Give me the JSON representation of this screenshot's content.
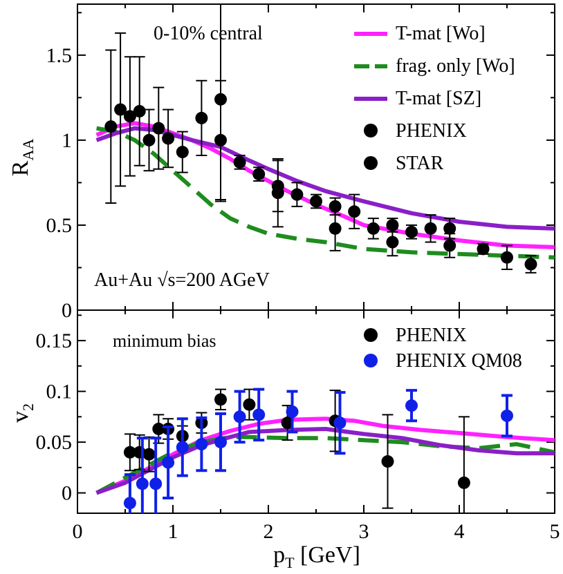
{
  "chart_data": [
    {
      "type": "line",
      "panel": "top",
      "title": "",
      "xlabel": "",
      "ylabel": "R",
      "ylabel_sub": "AA",
      "xlim": [
        0,
        5
      ],
      "ylim": [
        0,
        1.8
      ],
      "yticks": [
        0,
        0.5,
        1,
        1.5
      ],
      "ytick_labels": [
        "0",
        "0.5",
        "1",
        "1.5"
      ],
      "grid": false,
      "legend_position": "top-right",
      "annotations": {
        "centrality": "0-10% central",
        "system": "Au+Au √s=200 AGeV"
      },
      "series": [
        {
          "name": "T-mat [Wo]",
          "kind": "line",
          "style": "solid",
          "color": "#ff22ff",
          "x": [
            0.2,
            0.4,
            0.6,
            0.8,
            1.0,
            1.2,
            1.4,
            1.6,
            1.8,
            2.0,
            2.2,
            2.5,
            2.8,
            3.0,
            3.5,
            4.0,
            4.5,
            5.0
          ],
          "y": [
            1.03,
            1.08,
            1.1,
            1.08,
            1.04,
            1.0,
            0.95,
            0.89,
            0.82,
            0.76,
            0.7,
            0.62,
            0.55,
            0.5,
            0.45,
            0.41,
            0.38,
            0.37
          ]
        },
        {
          "name": "frag. only [Wo]",
          "kind": "line",
          "style": "dashed",
          "color": "#1e8c1e",
          "x": [
            0.2,
            0.4,
            0.6,
            0.8,
            1.0,
            1.2,
            1.4,
            1.6,
            1.8,
            2.0,
            2.3,
            2.6,
            3.0,
            3.5,
            4.0,
            4.5,
            5.0
          ],
          "y": [
            1.07,
            1.05,
            1.0,
            0.92,
            0.82,
            0.72,
            0.62,
            0.54,
            0.49,
            0.45,
            0.42,
            0.4,
            0.36,
            0.34,
            0.33,
            0.32,
            0.31
          ]
        },
        {
          "name": "T-mat [SZ]",
          "kind": "line",
          "style": "solid",
          "color": "#8a1fc7",
          "x": [
            0.2,
            0.4,
            0.6,
            0.8,
            1.0,
            1.2,
            1.5,
            1.8,
            2.0,
            2.3,
            2.6,
            3.0,
            3.5,
            4.0,
            4.5,
            5.0
          ],
          "y": [
            1.0,
            1.04,
            1.07,
            1.06,
            1.03,
            1.0,
            0.96,
            0.88,
            0.83,
            0.76,
            0.7,
            0.64,
            0.57,
            0.52,
            0.49,
            0.48
          ]
        },
        {
          "name": "PHENIX",
          "kind": "points",
          "color": "#000000",
          "x": [
            0.35,
            0.45,
            0.55,
            0.65,
            0.75,
            0.85,
            0.95,
            1.1,
            1.3,
            1.5,
            1.7,
            1.9,
            2.1,
            2.3,
            2.5,
            2.7,
            2.9,
            3.1,
            3.3,
            3.5,
            3.7,
            3.9,
            4.25,
            4.5,
            4.75
          ],
          "y": [
            1.08,
            1.18,
            1.14,
            1.17,
            1.0,
            1.07,
            1.01,
            0.93,
            1.13,
            1.24,
            0.87,
            0.8,
            0.73,
            0.68,
            0.64,
            0.61,
            0.58,
            0.48,
            0.5,
            0.46,
            0.48,
            0.48,
            0.36,
            0.31,
            0.27
          ],
          "err": [
            0.45,
            0.45,
            0.35,
            0.32,
            0.18,
            0.24,
            0.17,
            0.12,
            0.22,
            0.6,
            0.04,
            0.04,
            0.15,
            0.07,
            0.04,
            0.05,
            0.1,
            0.06,
            0.04,
            0.04,
            0.08,
            0.06,
            0.03,
            0.07,
            0.05
          ]
        },
        {
          "name": "STAR",
          "kind": "points",
          "color": "#000000",
          "x": [
            1.5,
            2.1,
            2.7,
            3.3,
            3.9
          ],
          "y": [
            1.0,
            0.69,
            0.48,
            0.4,
            0.38
          ],
          "err": [
            0.35,
            0.2,
            0.13,
            0.08,
            0.07
          ]
        }
      ]
    },
    {
      "type": "line",
      "panel": "bottom",
      "title": "",
      "xlabel": "p",
      "xlabel_sub": "T",
      "xlabel_rest": " [GeV]",
      "ylabel": "v",
      "ylabel_sub": "2",
      "xlim": [
        0,
        5
      ],
      "ylim": [
        -0.02,
        0.18
      ],
      "xticks": [
        0,
        1,
        2,
        3,
        4,
        5
      ],
      "xtick_labels": [
        "0",
        "1",
        "2",
        "3",
        "4",
        "5"
      ],
      "yticks": [
        0,
        0.05,
        0.1,
        0.15
      ],
      "ytick_labels": [
        "0",
        "0.05",
        "0.1",
        "0.15"
      ],
      "grid": false,
      "legend_position": "top-right",
      "annotations": {
        "sample": "minimum bias"
      },
      "series": [
        {
          "name": "",
          "kind": "line",
          "style": "solid",
          "color": "#ff22ff",
          "x": [
            0.2,
            0.5,
            0.8,
            1.0,
            1.3,
            1.6,
            1.9,
            2.2,
            2.6,
            2.9,
            3.2,
            3.6,
            4.0,
            4.5,
            5.0
          ],
          "y": [
            0.0,
            0.012,
            0.027,
            0.038,
            0.052,
            0.061,
            0.068,
            0.072,
            0.073,
            0.071,
            0.066,
            0.062,
            0.059,
            0.055,
            0.052
          ]
        },
        {
          "name": "",
          "kind": "line",
          "style": "dashed",
          "color": "#1e8c1e",
          "x": [
            0.2,
            0.5,
            0.8,
            1.0,
            1.3,
            1.6,
            1.8,
            2.2,
            2.6,
            3.0,
            3.4,
            3.8,
            4.2,
            4.6,
            5.0
          ],
          "y": [
            0.0,
            0.015,
            0.03,
            0.04,
            0.05,
            0.055,
            0.055,
            0.054,
            0.054,
            0.052,
            0.05,
            0.046,
            0.044,
            0.048,
            0.04
          ]
        },
        {
          "name": "",
          "kind": "line",
          "style": "solid",
          "color": "#8a1fc7",
          "x": [
            0.2,
            0.5,
            0.8,
            1.0,
            1.3,
            1.6,
            1.8,
            2.2,
            2.6,
            3.0,
            3.4,
            3.8,
            4.2,
            4.6,
            5.0
          ],
          "y": [
            0.0,
            0.01,
            0.025,
            0.035,
            0.047,
            0.055,
            0.06,
            0.062,
            0.063,
            0.058,
            0.054,
            0.047,
            0.042,
            0.039,
            0.039
          ]
        },
        {
          "name": "PHENIX",
          "kind": "points",
          "color": "#000000",
          "x": [
            0.55,
            0.65,
            0.75,
            0.85,
            0.95,
            1.1,
            1.3,
            1.5,
            1.8,
            2.2,
            2.7,
            3.25,
            4.05
          ],
          "y": [
            0.04,
            0.04,
            0.038,
            0.063,
            0.063,
            0.056,
            0.069,
            0.092,
            0.087,
            0.069,
            0.071,
            0.031,
            0.01
          ],
          "err": [
            0.018,
            0.017,
            0.017,
            0.014,
            0.01,
            0.01,
            0.01,
            0.01,
            0.015,
            0.017,
            0.03,
            0.046,
            0.065
          ]
        },
        {
          "name": "PHENIX QM08",
          "kind": "points",
          "color": "#1020e8",
          "x": [
            0.55,
            0.68,
            0.82,
            0.95,
            1.1,
            1.3,
            1.5,
            1.7,
            1.9,
            2.25,
            2.75,
            3.5,
            4.5
          ],
          "y": [
            -0.01,
            0.009,
            0.009,
            0.03,
            0.045,
            0.048,
            0.05,
            0.075,
            0.077,
            0.08,
            0.069,
            0.086,
            0.076
          ],
          "err": [
            0.028,
            0.045,
            0.045,
            0.035,
            0.028,
            0.026,
            0.028,
            0.025,
            0.025,
            0.02,
            0.03,
            0.015,
            0.02
          ]
        }
      ]
    }
  ]
}
